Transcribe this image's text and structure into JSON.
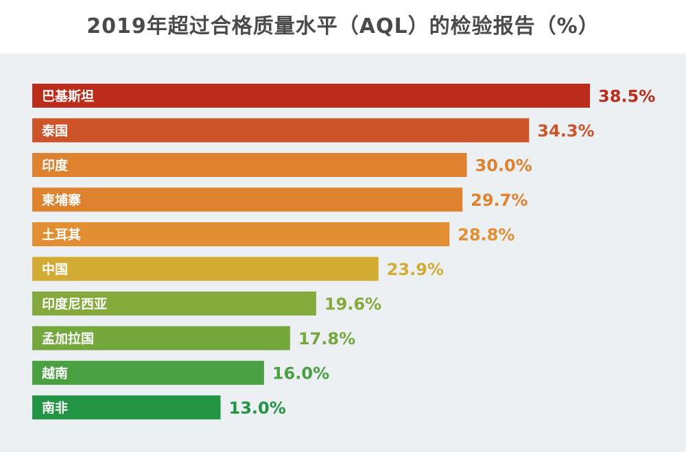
{
  "title": "2019年超过合格质量水平（AQL）的检验报告（%）",
  "chart_data": {
    "type": "bar",
    "orientation": "horizontal",
    "title": "2019年超过合格质量水平（AQL）的检验报告（%）",
    "categories": [
      "巴基斯坦",
      "泰国",
      "印度",
      "柬埔寨",
      "土耳其",
      "中国",
      "印度尼西亚",
      "孟加拉国",
      "越南",
      "南非"
    ],
    "values": [
      38.5,
      34.3,
      30.0,
      29.7,
      28.8,
      23.9,
      19.6,
      17.8,
      16.0,
      13.0
    ],
    "value_labels": [
      "38.5%",
      "34.3%",
      "30.0%",
      "29.7%",
      "28.8%",
      "23.9%",
      "19.6%",
      "17.8%",
      "16.0%",
      "13.0%"
    ],
    "colors": [
      "#bb2c1b",
      "#cc5428",
      "#df8230",
      "#df8230",
      "#e18f32",
      "#d3aa34",
      "#84a93c",
      "#74a73c",
      "#4a9f40",
      "#229443"
    ],
    "xlim": [
      0,
      38.5
    ],
    "grid": false,
    "legend": "none"
  }
}
